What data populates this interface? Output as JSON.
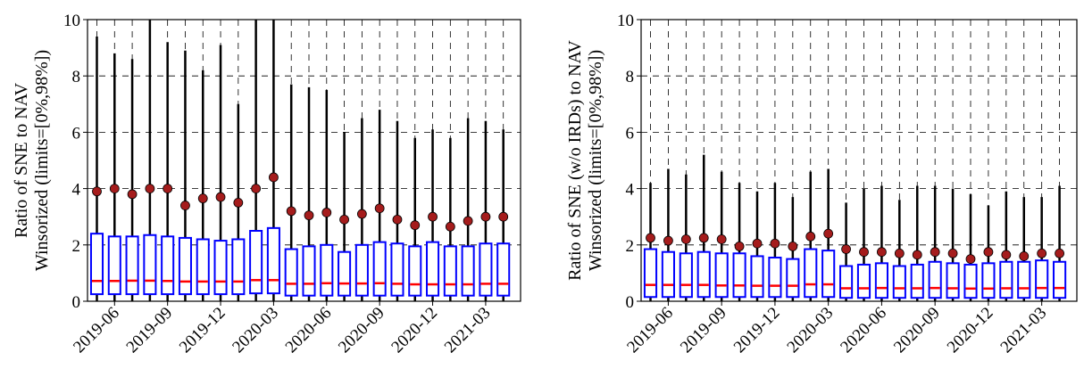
{
  "chart_data": [
    {
      "type": "box",
      "ylabel": [
        "Ratio of SNE to NAV",
        "Winsorized (limits=[0%,98%])"
      ],
      "categories": [
        null,
        "2019-06",
        null,
        null,
        "2019-09",
        null,
        null,
        "2019-12",
        null,
        null,
        "2020-03",
        null,
        null,
        "2020-06",
        null,
        null,
        "2020-09",
        null,
        null,
        "2020-12",
        null,
        null,
        "2021-03",
        null
      ],
      "whislo": [
        0,
        0,
        0,
        0,
        0,
        0,
        0,
        0,
        0,
        0,
        0,
        0,
        0,
        0,
        0,
        0,
        0,
        0,
        0,
        0,
        0,
        0,
        0,
        0
      ],
      "q1": [
        0.25,
        0.25,
        0.25,
        0.25,
        0.25,
        0.25,
        0.25,
        0.25,
        0.25,
        0.28,
        0.28,
        0.2,
        0.2,
        0.2,
        0.2,
        0.2,
        0.2,
        0.2,
        0.2,
        0.2,
        0.2,
        0.2,
        0.2,
        0.2
      ],
      "median": [
        0.72,
        0.72,
        0.73,
        0.73,
        0.72,
        0.7,
        0.7,
        0.7,
        0.7,
        0.75,
        0.75,
        0.62,
        0.62,
        0.64,
        0.63,
        0.63,
        0.64,
        0.62,
        0.6,
        0.6,
        0.6,
        0.6,
        0.62,
        0.62
      ],
      "q3": [
        2.4,
        2.3,
        2.3,
        2.35,
        2.3,
        2.25,
        2.2,
        2.15,
        2.2,
        2.5,
        2.6,
        1.85,
        1.95,
        2.0,
        1.75,
        2.0,
        2.1,
        2.05,
        1.95,
        2.1,
        1.95,
        1.95,
        2.05,
        2.05
      ],
      "whishi": [
        9.4,
        8.8,
        8.6,
        10,
        9.2,
        8.9,
        8.2,
        9.1,
        7.0,
        10,
        10,
        7.7,
        7.6,
        7.5,
        6.0,
        6.5,
        6.8,
        6.4,
        5.8,
        6.1,
        5.8,
        6.5,
        6.4,
        6.1
      ],
      "mean": [
        3.9,
        4.0,
        3.8,
        4.0,
        4.0,
        3.4,
        3.65,
        3.7,
        3.5,
        4.0,
        4.4,
        3.2,
        3.05,
        3.15,
        2.9,
        3.1,
        3.3,
        2.9,
        2.7,
        3.0,
        2.65,
        2.85,
        3.0,
        3.0
      ],
      "box_color": "#0000ff",
      "median_color": "#ff0000",
      "mean_color": "#a51c1c",
      "ylim": [
        0,
        10
      ],
      "yticks": [
        0,
        2,
        4,
        6,
        8,
        10
      ],
      "grid": true
    },
    {
      "type": "box",
      "ylabel": [
        "Ratio of SNE (w/o IRDs) to NAV",
        "Winsorized (limits=[0%,98%])"
      ],
      "categories": [
        null,
        "2019-06",
        null,
        null,
        "2019-09",
        null,
        null,
        "2019-12",
        null,
        null,
        "2020-03",
        null,
        null,
        "2020-06",
        null,
        null,
        "2020-09",
        null,
        null,
        "2020-12",
        null,
        null,
        "2021-03",
        null
      ],
      "whislo": [
        0,
        0,
        0,
        0,
        0,
        0,
        0,
        0,
        0,
        0,
        0,
        0,
        0,
        0,
        0,
        0,
        0,
        0,
        0,
        0,
        0,
        0,
        0,
        0
      ],
      "q1": [
        0.15,
        0.15,
        0.15,
        0.15,
        0.15,
        0.15,
        0.15,
        0.15,
        0.15,
        0.15,
        0.15,
        0.12,
        0.12,
        0.12,
        0.12,
        0.12,
        0.12,
        0.12,
        0.12,
        0.12,
        0.12,
        0.12,
        0.12,
        0.12
      ],
      "median": [
        0.58,
        0.58,
        0.58,
        0.58,
        0.56,
        0.56,
        0.55,
        0.55,
        0.55,
        0.6,
        0.6,
        0.46,
        0.46,
        0.47,
        0.46,
        0.46,
        0.47,
        0.46,
        0.45,
        0.45,
        0.46,
        0.46,
        0.47,
        0.47
      ],
      "q3": [
        1.85,
        1.75,
        1.7,
        1.75,
        1.7,
        1.7,
        1.6,
        1.55,
        1.5,
        1.85,
        1.8,
        1.25,
        1.3,
        1.35,
        1.25,
        1.3,
        1.4,
        1.35,
        1.3,
        1.35,
        1.4,
        1.4,
        1.45,
        1.4
      ],
      "whishi": [
        4.2,
        4.7,
        4.5,
        5.2,
        4.6,
        4.2,
        3.9,
        4.2,
        3.7,
        4.6,
        4.7,
        3.5,
        4.0,
        4.1,
        3.6,
        4.1,
        4.1,
        4.0,
        3.8,
        3.4,
        3.9,
        3.7,
        3.7,
        4.1
      ],
      "mean": [
        2.25,
        2.15,
        2.2,
        2.25,
        2.2,
        1.95,
        2.05,
        2.05,
        1.95,
        2.3,
        2.4,
        1.85,
        1.75,
        1.75,
        1.7,
        1.65,
        1.75,
        1.7,
        1.5,
        1.75,
        1.65,
        1.6,
        1.7,
        1.7
      ],
      "box_color": "#0000ff",
      "median_color": "#ff0000",
      "mean_color": "#a51c1c",
      "ylim": [
        0,
        10
      ],
      "yticks": [
        0,
        2,
        4,
        6,
        8,
        10
      ],
      "grid": true
    }
  ]
}
